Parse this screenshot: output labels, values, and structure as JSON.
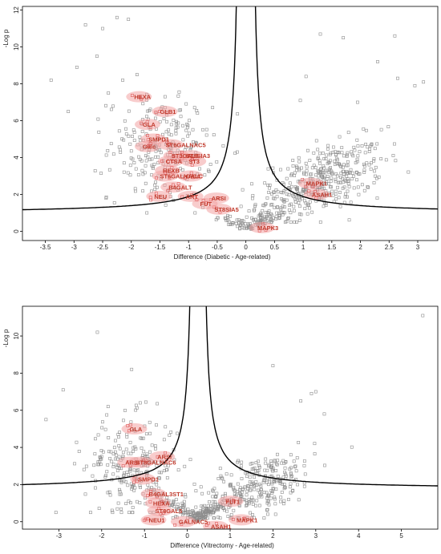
{
  "chart_data": [
    {
      "type": "scatter",
      "xlabel": "Difference (Diabetic - Age-related)",
      "ylabel": "-Log p",
      "xlim": [
        -3.9,
        3.35
      ],
      "ylim": [
        -0.5,
        12.2
      ],
      "x_ticks": [
        -3.5,
        -3,
        -2.5,
        -2,
        -1.5,
        -1,
        -0.5,
        0,
        0.5,
        1,
        1.5,
        2,
        2.5,
        3
      ],
      "y_ticks": [
        0,
        2,
        4,
        6,
        8,
        10,
        12
      ],
      "threshold_curve": {
        "s0": 0.1,
        "c": 0.85,
        "floor": 0.95,
        "center": 0
      },
      "labels": [
        {
          "text": "HEXA",
          "x": -1.95,
          "y": 7.3
        },
        {
          "text": "GLB1",
          "x": -1.5,
          "y": 6.5
        },
        {
          "text": "GLA",
          "x": -1.8,
          "y": 5.8
        },
        {
          "text": "SMPD1",
          "x": -1.7,
          "y": 5.0
        },
        {
          "text": "Galc",
          "x": -1.8,
          "y": 4.6
        },
        {
          "text": "ST6GALNAC5",
          "x": -1.4,
          "y": 4.7
        },
        {
          "text": "ST3GAL5",
          "x": -1.3,
          "y": 4.1
        },
        {
          "text": "ST8SIA3",
          "x": -1.05,
          "y": 4.1
        },
        {
          "text": "CTSA",
          "x": -1.4,
          "y": 3.8
        },
        {
          "text": "ST3",
          "x": -1.0,
          "y": 3.8
        },
        {
          "text": "HEXB",
          "x": -1.45,
          "y": 3.3
        },
        {
          "text": "ST6GALNAC4",
          "x": -1.5,
          "y": 3.0
        },
        {
          "text": "GALC",
          "x": -1.05,
          "y": 3.0
        },
        {
          "text": "B4GALT",
          "x": -1.35,
          "y": 2.4
        },
        {
          "text": "NEU",
          "x": -1.6,
          "y": 1.9
        },
        {
          "text": "ART",
          "x": -1.05,
          "y": 1.9
        },
        {
          "text": "ARSI",
          "x": -0.6,
          "y": 1.8
        },
        {
          "text": "ST8SIA5",
          "x": -0.55,
          "y": 1.2
        },
        {
          "text": "FUT",
          "x": -0.8,
          "y": 1.5
        },
        {
          "text": "MAPK1",
          "x": 1.05,
          "y": 2.6
        },
        {
          "text": "ASAH1",
          "x": 1.15,
          "y": 2.0
        },
        {
          "text": "MAPK3",
          "x": 0.2,
          "y": 0.2
        }
      ]
    },
    {
      "type": "scatter",
      "xlabel": "Difference (Vitrectomy - Age-related)",
      "ylabel": "-Log p",
      "xlim": [
        -3.85,
        5.85
      ],
      "ylim": [
        -0.4,
        11.6
      ],
      "x_ticks": [
        -3,
        -2,
        -1,
        0,
        1,
        2,
        3,
        4,
        5
      ],
      "y_ticks": [
        0,
        2,
        4,
        6,
        8,
        10
      ],
      "threshold_curve": {
        "s0": 0.1,
        "c": 1.0,
        "floor": 1.75,
        "center": 0.25
      },
      "labels": [
        {
          "text": "GLA",
          "x": -1.35,
          "y": 5.0
        },
        {
          "text": "ARSI",
          "x": -0.7,
          "y": 3.5
        },
        {
          "text": "ARSI",
          "x": -1.45,
          "y": 3.2
        },
        {
          "text": "ST8GALNAC6",
          "x": -1.2,
          "y": 3.2
        },
        {
          "text": "SMPD1",
          "x": -1.15,
          "y": 2.3
        },
        {
          "text": "B4GAL3ST1",
          "x": -0.9,
          "y": 1.5
        },
        {
          "text": "HEXA",
          "x": -0.8,
          "y": 1.0
        },
        {
          "text": "ST8GAL5",
          "x": -0.75,
          "y": 0.6
        },
        {
          "text": "NEU1",
          "x": -0.9,
          "y": 0.1
        },
        {
          "text": "GALNAC5",
          "x": -0.2,
          "y": 0.0
        },
        {
          "text": "FLT1",
          "x": 0.9,
          "y": 1.1
        },
        {
          "text": "MAPK1",
          "x": 1.15,
          "y": 0.1
        },
        {
          "text": "ASAH1",
          "x": 0.55,
          "y": -0.25
        }
      ]
    }
  ]
}
